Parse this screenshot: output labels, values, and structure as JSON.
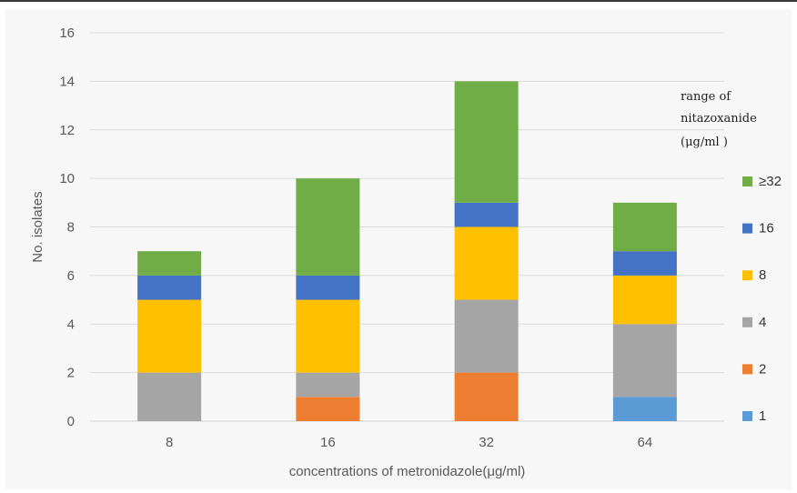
{
  "chart_data": {
    "type": "bar",
    "stacked": true,
    "categories": [
      "8",
      "16",
      "32",
      "64"
    ],
    "xlabel": "concentrations of metronidazole(μg/ml)",
    "ylabel": "No. isolates",
    "ylim": [
      0,
      16
    ],
    "yticks": [
      0,
      2,
      4,
      6,
      8,
      10,
      12,
      14,
      16
    ],
    "grid": true,
    "legend_title": [
      "range of",
      "nitazoxanide",
      "(μg/ml )"
    ],
    "legend_position": "right",
    "series": [
      {
        "name": "1",
        "color": "#5b9bd5",
        "values": [
          0,
          0,
          0,
          1
        ]
      },
      {
        "name": "2",
        "color": "#ed7d31",
        "values": [
          0,
          1,
          2,
          0
        ]
      },
      {
        "name": "4",
        "color": "#a5a5a5",
        "values": [
          2,
          1,
          3,
          3
        ]
      },
      {
        "name": "8",
        "color": "#ffc000",
        "values": [
          3,
          3,
          3,
          2
        ]
      },
      {
        "name": "16",
        "color": "#4472c4",
        "values": [
          1,
          1,
          1,
          1
        ]
      },
      {
        "name": "≥32",
        "color": "#70ad47",
        "values": [
          1,
          4,
          5,
          2
        ]
      }
    ]
  }
}
